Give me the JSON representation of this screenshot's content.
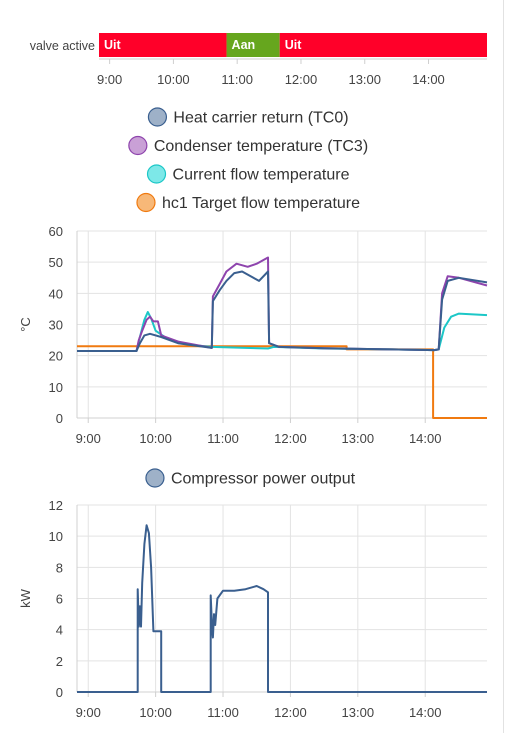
{
  "timeline": {
    "label": "valve active",
    "segments": [
      {
        "label": "Uit",
        "start": "8:50",
        "end": "10:50",
        "color": "#ff0029"
      },
      {
        "label": "Aan",
        "start": "10:50",
        "end": "11:40",
        "color": "#66a61e"
      },
      {
        "label": "Uit",
        "start": "11:40",
        "end": "14:55",
        "color": "#ff0029"
      }
    ],
    "ticks": [
      "9:00",
      "10:00",
      "11:00",
      "12:00",
      "13:00",
      "14:00"
    ]
  },
  "chart_data": [
    {
      "type": "line",
      "title": "",
      "ylabel": "°C",
      "xlim": [
        "8:50",
        "14:55"
      ],
      "ylim": [
        0,
        60
      ],
      "yticks": [
        0,
        10,
        20,
        30,
        40,
        50,
        60
      ],
      "xticks": [
        "9:00",
        "10:00",
        "11:00",
        "12:00",
        "13:00",
        "14:00"
      ],
      "grid": true,
      "legend": "top-center",
      "series": [
        {
          "name": "Heat carrier return (TC0)",
          "color": "#3a5f8f",
          "legend_color": "#9eb1c8",
          "points": [
            [
              "8:50",
              21.5
            ],
            [
              "9:43",
              21.5
            ],
            [
              "9:46",
              24
            ],
            [
              "9:50",
              26.5
            ],
            [
              "9:55",
              27
            ],
            [
              "10:05",
              26
            ],
            [
              "10:20",
              24
            ],
            [
              "10:50",
              22.5
            ],
            [
              "10:51",
              37.5
            ],
            [
              "10:57",
              41
            ],
            [
              "11:03",
              44
            ],
            [
              "11:10",
              46.5
            ],
            [
              "11:17",
              47
            ],
            [
              "11:27",
              45
            ],
            [
              "11:32",
              44
            ],
            [
              "11:40",
              47
            ],
            [
              "11:41",
              24
            ],
            [
              "11:50",
              22.8
            ],
            [
              "12:30",
              22.4
            ],
            [
              "13:30",
              22
            ],
            [
              "14:08",
              21.8
            ],
            [
              "14:12",
              22
            ],
            [
              "14:15",
              38
            ],
            [
              "14:20",
              44
            ],
            [
              "14:30",
              45
            ],
            [
              "14:55",
              43.5
            ]
          ]
        },
        {
          "name": "Condenser temperature (TC3)",
          "color": "#8e44ad",
          "legend_color": "#c9a0d6",
          "points": [
            [
              "8:50",
              21.5
            ],
            [
              "9:43",
              21.5
            ],
            [
              "9:45",
              25
            ],
            [
              "9:48",
              28
            ],
            [
              "9:52",
              31.5
            ],
            [
              "9:55",
              32.5
            ],
            [
              "9:58",
              31
            ],
            [
              "10:02",
              31
            ],
            [
              "10:05",
              26.5
            ],
            [
              "10:20",
              24.5
            ],
            [
              "10:50",
              22.5
            ],
            [
              "10:51",
              39
            ],
            [
              "10:57",
              43
            ],
            [
              "11:03",
              47
            ],
            [
              "11:12",
              49.5
            ],
            [
              "11:22",
              48.5
            ],
            [
              "11:30",
              49.5
            ],
            [
              "11:40",
              51.5
            ],
            [
              "11:41",
              24
            ],
            [
              "11:50",
              22.8
            ],
            [
              "12:30",
              22.4
            ],
            [
              "13:30",
              22
            ],
            [
              "14:08",
              21.8
            ],
            [
              "14:12",
              22
            ],
            [
              "14:15",
              40
            ],
            [
              "14:20",
              45.5
            ],
            [
              "14:30",
              45
            ],
            [
              "14:55",
              42.5
            ]
          ]
        },
        {
          "name": "Current flow temperature",
          "color": "#1cc7c7",
          "legend_color": "#7de8e8",
          "points": [
            [
              "8:50",
              21.5
            ],
            [
              "9:43",
              21.5
            ],
            [
              "9:46",
              26
            ],
            [
              "9:50",
              31.5
            ],
            [
              "9:53",
              34
            ],
            [
              "9:56",
              32
            ],
            [
              "10:00",
              28
            ],
            [
              "10:10",
              25.5
            ],
            [
              "10:30",
              23.5
            ],
            [
              "10:50",
              22.8
            ],
            [
              "11:20",
              22.5
            ],
            [
              "11:40",
              22.3
            ],
            [
              "11:45",
              22.8
            ],
            [
              "12:30",
              22.3
            ],
            [
              "13:30",
              22
            ],
            [
              "14:08",
              21.8
            ],
            [
              "14:12",
              22
            ],
            [
              "14:17",
              29
            ],
            [
              "14:23",
              32.5
            ],
            [
              "14:30",
              33.5
            ],
            [
              "14:55",
              33
            ]
          ]
        },
        {
          "name": "hc1 Target flow temperature",
          "color": "#f07a10",
          "legend_color": "#f7b878",
          "points": [
            [
              "8:50",
              23
            ],
            [
              "12:50",
              23
            ],
            [
              "12:50",
              22
            ],
            [
              "14:07",
              22
            ],
            [
              "14:07",
              0
            ],
            [
              "14:55",
              0
            ]
          ]
        }
      ]
    },
    {
      "type": "line",
      "title": "",
      "ylabel": "kW",
      "xlim": [
        "8:50",
        "14:55"
      ],
      "ylim": [
        0,
        12
      ],
      "yticks": [
        0,
        2,
        4,
        6,
        8,
        10,
        12
      ],
      "xticks": [
        "9:00",
        "10:00",
        "11:00",
        "12:00",
        "13:00",
        "14:00"
      ],
      "grid": true,
      "legend": "top-center",
      "series": [
        {
          "name": "Compressor power output",
          "color": "#3a5f8f",
          "legend_color": "#9eb1c8",
          "points": [
            [
              "8:50",
              0
            ],
            [
              "9:44",
              0
            ],
            [
              "9:44",
              6.6
            ],
            [
              "9:45",
              4.2
            ],
            [
              "9:46",
              5.5
            ],
            [
              "9:47",
              4.2
            ],
            [
              "9:48",
              7
            ],
            [
              "9:50",
              9.5
            ],
            [
              "9:52",
              10.7
            ],
            [
              "9:54",
              10.2
            ],
            [
              "9:56",
              8
            ],
            [
              "9:58",
              3.9
            ],
            [
              "10:05",
              3.9
            ],
            [
              "10:05",
              0
            ],
            [
              "10:49",
              0
            ],
            [
              "10:49",
              6.2
            ],
            [
              "10:50",
              4.5
            ],
            [
              "10:51",
              3.5
            ],
            [
              "10:52",
              5
            ],
            [
              "10:53",
              4.3
            ],
            [
              "10:55",
              6
            ],
            [
              "11:00",
              6.5
            ],
            [
              "11:10",
              6.5
            ],
            [
              "11:20",
              6.6
            ],
            [
              "11:30",
              6.8
            ],
            [
              "11:36",
              6.6
            ],
            [
              "11:40",
              6.4
            ],
            [
              "11:40",
              0
            ],
            [
              "14:55",
              0
            ]
          ]
        }
      ]
    }
  ]
}
